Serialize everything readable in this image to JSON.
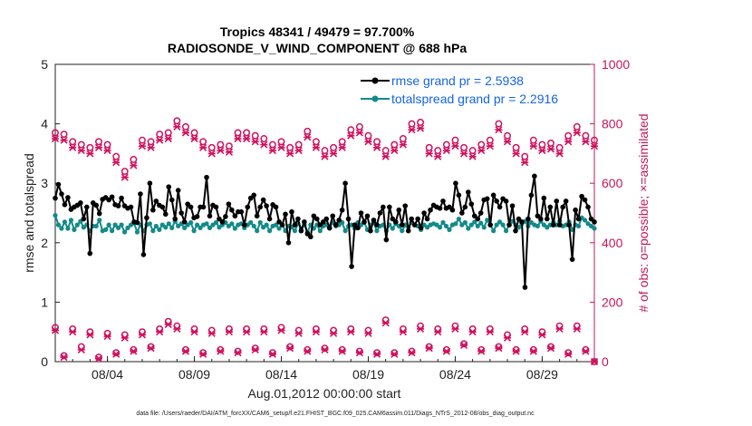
{
  "chart_data": {
    "type": "line",
    "title_line1": "Tropics 48341 / 49479 = 97.700%",
    "title_line2": "RADIOSONDE_V_WIND_COMPONENT @ 688 hPa",
    "ylabel_left": "rmse and totalspread",
    "ylabel_right": "# of obs: o=possible; ×=assimilated",
    "xlabel": "Aug.01,2012 00:00:00 start",
    "footer": "data file: /Users/raeder/DAI/ATM_forcXX/CAM6_setup/f.e21.FHIST_BGC.f09_025.CAM6assim.011/Diags_NTrS_2012-08/obs_diag_output.nc",
    "ylim_left": [
      0,
      5
    ],
    "ylim_right": [
      0,
      1000
    ],
    "xlim_days": [
      0,
      31
    ],
    "yticks_left": [
      "0",
      "1",
      "2",
      "3",
      "4",
      "5"
    ],
    "yticks_right": [
      "0",
      "200",
      "400",
      "600",
      "800",
      "1000"
    ],
    "xticks": [
      {
        "day": 3,
        "label": "08/04"
      },
      {
        "day": 8,
        "label": "08/09"
      },
      {
        "day": 13,
        "label": "08/14"
      },
      {
        "day": 18,
        "label": "08/19"
      },
      {
        "day": 23,
        "label": "08/24"
      },
      {
        "day": 28,
        "label": "08/29"
      }
    ],
    "legend": [
      {
        "label": "rmse grand pr = 2.5938",
        "color": "#000000"
      },
      {
        "label": "totalspread grand pr = 2.2916",
        "color": "#138a8a"
      }
    ],
    "colors": {
      "rmse": "#000000",
      "spread": "#138a8a",
      "obs": "#d0105e",
      "legend_text": "#1565e0"
    },
    "series": [
      {
        "name": "rmse",
        "values": [
          2.75,
          2.98,
          2.82,
          2.64,
          2.76,
          2.56,
          2.6,
          2.63,
          2.67,
          2.4,
          2.6,
          1.82,
          2.67,
          2.63,
          2.49,
          2.73,
          2.76,
          2.72,
          2.77,
          2.64,
          2.62,
          2.75,
          2.62,
          2.58,
          2.6,
          2.35,
          2.34,
          2.82,
          1.8,
          2.42,
          3.0,
          2.55,
          2.7,
          2.63,
          2.6,
          2.48,
          2.94,
          2.72,
          2.4,
          2.88,
          2.5,
          2.35,
          2.65,
          2.6,
          2.42,
          2.44,
          2.6,
          2.6,
          3.1,
          2.45,
          2.63,
          2.6,
          2.4,
          2.35,
          2.44,
          2.65,
          2.55,
          2.45,
          2.52,
          2.52,
          2.3,
          2.6,
          2.75,
          2.8,
          2.45,
          2.6,
          2.72,
          2.62,
          2.4,
          2.64,
          2.6,
          2.35,
          2.3,
          2.48,
          2.0,
          2.52,
          2.3,
          2.4,
          2.2,
          2.35,
          2.15,
          2.1,
          2.45,
          2.4,
          2.3,
          2.35,
          2.4,
          2.25,
          2.45,
          2.3,
          2.38,
          2.55,
          3.0,
          2.4,
          1.6,
          2.3,
          2.25,
          2.5,
          2.35,
          2.45,
          2.2,
          2.38,
          2.3,
          2.5,
          2.6,
          2.05,
          2.6,
          2.4,
          2.35,
          2.55,
          2.3,
          2.62,
          2.2,
          2.4,
          2.3,
          2.4,
          2.25,
          2.5,
          2.4,
          2.55,
          2.63,
          2.6,
          2.58,
          2.7,
          2.58,
          2.6,
          2.55,
          3.0,
          2.8,
          2.5,
          2.6,
          2.85,
          2.65,
          2.45,
          2.4,
          2.5,
          2.72,
          2.74,
          2.3,
          2.8,
          2.7,
          2.6,
          2.74,
          2.7,
          2.3,
          2.62,
          2.2,
          2.4,
          2.35,
          1.25,
          2.4,
          2.8,
          3.12,
          2.45,
          2.4,
          2.75,
          2.4,
          2.6,
          2.3,
          2.7,
          2.3,
          2.6,
          2.7,
          2.3,
          1.72,
          2.55,
          2.4,
          2.78,
          2.72,
          2.6,
          2.4,
          2.35
        ]
      },
      {
        "name": "totalspread",
        "values": [
          2.46,
          2.3,
          2.24,
          2.35,
          2.24,
          2.38,
          2.22,
          2.3,
          2.36,
          2.26,
          2.3,
          2.2,
          2.28,
          2.28,
          2.38,
          2.2,
          2.22,
          2.3,
          2.2,
          2.3,
          2.25,
          2.3,
          2.18,
          2.25,
          2.3,
          2.33,
          2.18,
          2.3,
          2.2,
          2.3,
          2.32,
          2.2,
          2.28,
          2.22,
          2.3,
          2.26,
          2.32,
          2.25,
          2.36,
          2.28,
          2.32,
          2.25,
          2.3,
          2.34,
          2.2,
          2.3,
          2.25,
          2.3,
          2.32,
          2.25,
          2.3,
          2.34,
          2.26,
          2.3,
          2.34,
          2.28,
          2.32,
          2.24,
          2.3,
          2.32,
          2.25,
          2.3,
          2.34,
          2.28,
          2.2,
          2.34,
          2.26,
          2.3,
          2.2,
          2.28,
          2.3,
          2.24,
          2.3,
          2.2,
          2.28,
          2.26,
          2.2,
          2.32,
          2.24,
          2.3,
          2.18,
          2.3,
          2.24,
          2.3,
          2.2,
          2.28,
          2.3,
          2.24,
          2.34,
          2.28,
          2.3,
          2.34,
          2.2,
          2.28,
          2.3,
          2.24,
          2.34,
          2.3,
          2.34,
          2.22,
          2.3,
          2.34,
          2.2,
          2.28,
          2.3,
          2.2,
          2.3,
          2.24,
          2.32,
          2.28,
          2.2,
          2.3,
          2.26,
          2.34,
          2.3,
          2.28,
          2.22,
          2.3,
          2.26,
          2.3,
          2.32,
          2.3,
          2.26,
          2.34,
          2.28,
          2.22,
          2.3,
          2.32,
          2.4,
          2.3,
          2.34,
          2.24,
          2.3,
          2.35,
          2.28,
          2.33,
          2.26,
          2.38,
          2.3,
          2.2,
          2.3,
          2.35,
          2.3,
          2.2,
          2.3,
          2.36,
          2.3,
          2.26,
          2.32,
          2.36,
          2.28,
          2.34,
          2.3,
          2.28,
          2.36,
          2.3,
          2.26,
          2.3,
          2.34,
          2.3,
          2.36,
          2.28,
          2.3,
          2.35,
          2.22,
          2.3,
          2.28,
          2.42,
          2.38,
          2.32,
          2.28,
          2.24
        ]
      },
      {
        "name": "obs_possible_upper",
        "days": [
          0.0,
          0.5,
          1.0,
          1.5,
          2.0,
          2.5,
          3.0,
          3.5,
          4.0,
          4.5,
          5.0,
          5.5,
          6.0,
          6.5,
          7.0,
          7.5,
          8.0,
          8.5,
          9.0,
          9.5,
          10.0,
          10.5,
          11.0,
          11.5,
          12.0,
          12.5,
          13.0,
          13.5,
          14.0,
          14.5,
          15.0,
          15.5,
          16.0,
          16.5,
          17.0,
          17.5,
          18.0,
          18.5,
          19.0,
          19.5,
          20.0,
          20.5,
          21.0,
          21.5,
          22.0,
          22.5,
          23.0,
          23.5,
          24.0,
          24.5,
          25.0,
          25.5,
          26.0,
          26.5,
          27.0,
          27.5,
          28.0,
          28.5,
          29.0,
          29.5,
          30.0,
          30.5,
          31.0
        ],
        "values": [
          770,
          765,
          740,
          730,
          720,
          740,
          730,
          690,
          640,
          680,
          745,
          740,
          765,
          770,
          810,
          790,
          770,
          740,
          720,
          730,
          725,
          770,
          770,
          760,
          750,
          730,
          740,
          720,
          730,
          775,
          740,
          710,
          720,
          740,
          780,
          790,
          760,
          740,
          710,
          730,
          750,
          800,
          805,
          720,
          710,
          730,
          745,
          720,
          710,
          730,
          745,
          800,
          760,
          720,
          690,
          745,
          730,
          735,
          720,
          760,
          790,
          760,
          745
        ]
      },
      {
        "name": "obs_assimilated_upper",
        "days": [
          0.0,
          0.5,
          1.0,
          1.5,
          2.0,
          2.5,
          3.0,
          3.5,
          4.0,
          4.5,
          5.0,
          5.5,
          6.0,
          6.5,
          7.0,
          7.5,
          8.0,
          8.5,
          9.0,
          9.5,
          10.0,
          10.5,
          11.0,
          11.5,
          12.0,
          12.5,
          13.0,
          13.5,
          14.0,
          14.5,
          15.0,
          15.5,
          16.0,
          16.5,
          17.0,
          17.5,
          18.0,
          18.5,
          19.0,
          19.5,
          20.0,
          20.5,
          21.0,
          21.5,
          22.0,
          22.5,
          23.0,
          23.5,
          24.0,
          24.5,
          25.0,
          25.5,
          26.0,
          26.5,
          27.0,
          27.5,
          28.0,
          28.5,
          29.0,
          29.5,
          30.0,
          30.5,
          31.0
        ],
        "values": [
          750,
          745,
          720,
          710,
          700,
          720,
          710,
          670,
          620,
          660,
          725,
          720,
          745,
          750,
          790,
          770,
          750,
          720,
          700,
          710,
          705,
          750,
          750,
          740,
          730,
          710,
          720,
          700,
          710,
          755,
          720,
          690,
          700,
          720,
          760,
          770,
          740,
          720,
          690,
          710,
          730,
          780,
          785,
          700,
          690,
          710,
          725,
          700,
          690,
          710,
          725,
          780,
          740,
          700,
          670,
          725,
          710,
          715,
          700,
          740,
          770,
          740,
          725
        ]
      },
      {
        "name": "obs_possible_lower",
        "days": [
          0.0,
          0.5,
          1.0,
          1.5,
          2.0,
          2.5,
          3.0,
          3.5,
          4.0,
          4.5,
          5.0,
          5.5,
          6.0,
          6.5,
          7.0,
          7.5,
          8.0,
          8.5,
          9.0,
          9.5,
          10.0,
          10.5,
          11.0,
          11.5,
          12.0,
          12.5,
          13.0,
          13.5,
          14.0,
          14.5,
          15.0,
          15.5,
          16.0,
          16.5,
          17.0,
          17.5,
          18.0,
          18.5,
          19.0,
          19.5,
          20.0,
          20.5,
          21.0,
          21.5,
          22.0,
          22.5,
          23.0,
          23.5,
          24.0,
          24.5,
          25.0,
          25.5,
          26.0,
          26.5,
          27.0,
          27.5,
          28.0,
          28.5,
          29.0,
          29.5,
          30.0,
          30.5,
          31.0
        ],
        "values": [
          115,
          20,
          110,
          50,
          100,
          15,
          95,
          30,
          90,
          40,
          100,
          50,
          110,
          135,
          120,
          40,
          110,
          30,
          105,
          40,
          110,
          35,
          110,
          45,
          110,
          30,
          115,
          50,
          105,
          40,
          110,
          45,
          105,
          40,
          110,
          35,
          105,
          30,
          140,
          30,
          110,
          35,
          120,
          50,
          110,
          40,
          120,
          60,
          110,
          40,
          110,
          50,
          90,
          40,
          110,
          40,
          100,
          50,
          120,
          30,
          120,
          40,
          0
        ]
      },
      {
        "name": "obs_assimilated_lower",
        "days": [
          0.0,
          0.5,
          1.0,
          1.5,
          2.0,
          2.5,
          3.0,
          3.5,
          4.0,
          4.5,
          5.0,
          5.5,
          6.0,
          6.5,
          7.0,
          7.5,
          8.0,
          8.5,
          9.0,
          9.5,
          10.0,
          10.5,
          11.0,
          11.5,
          12.0,
          12.5,
          13.0,
          13.5,
          14.0,
          14.5,
          15.0,
          15.5,
          16.0,
          16.5,
          17.0,
          17.5,
          18.0,
          18.5,
          19.0,
          19.5,
          20.0,
          20.5,
          21.0,
          21.5,
          22.0,
          22.5,
          23.0,
          23.5,
          24.0,
          24.5,
          25.0,
          25.5,
          26.0,
          26.5,
          27.0,
          27.5,
          28.0,
          28.5,
          29.0,
          29.5,
          30.0,
          30.5,
          31.0
        ],
        "values": [
          105,
          15,
          100,
          40,
          90,
          10,
          85,
          25,
          80,
          35,
          90,
          45,
          100,
          125,
          110,
          35,
          100,
          25,
          95,
          35,
          100,
          30,
          100,
          40,
          100,
          25,
          105,
          45,
          95,
          35,
          100,
          40,
          95,
          35,
          100,
          30,
          95,
          25,
          130,
          25,
          100,
          30,
          110,
          45,
          100,
          35,
          110,
          55,
          100,
          35,
          100,
          45,
          80,
          35,
          100,
          35,
          90,
          45,
          110,
          25,
          110,
          35,
          0
        ]
      }
    ]
  }
}
